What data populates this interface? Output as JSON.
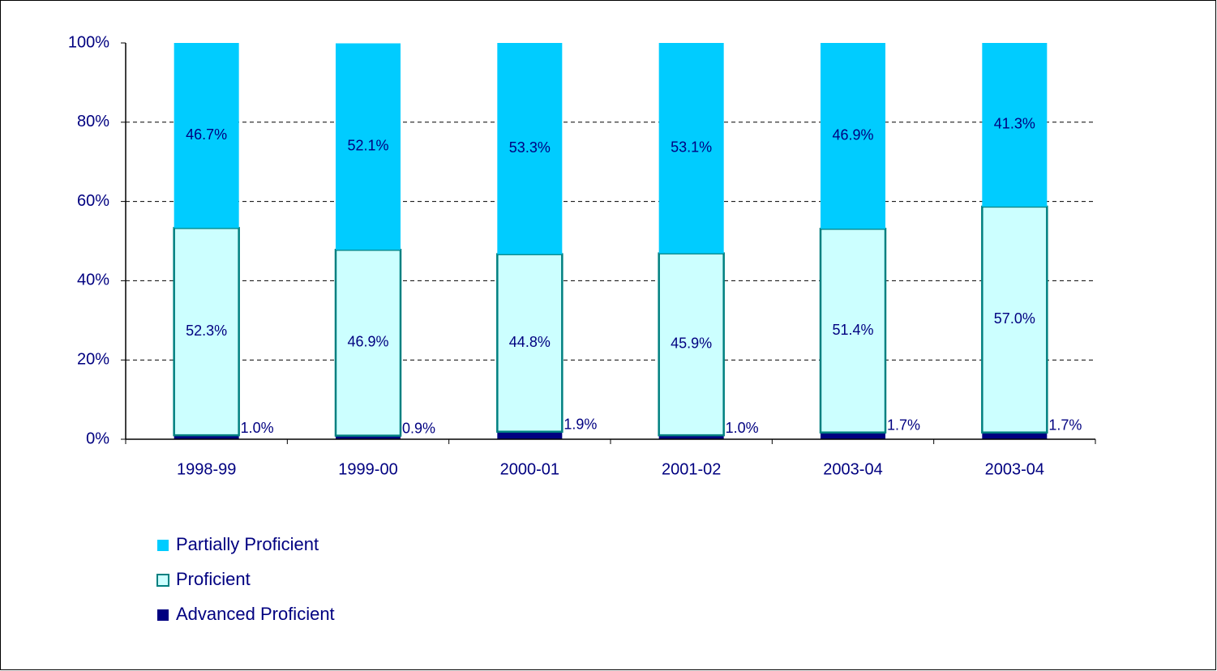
{
  "chart_data": {
    "type": "stacked_bar",
    "categories": [
      "1998-99",
      "1999-00",
      "2000-01",
      "2001-02",
      "2003-04",
      "2003-04"
    ],
    "series": [
      {
        "name": "Advanced Proficient",
        "color": "#000080",
        "values": [
          1.0,
          0.9,
          1.9,
          1.0,
          1.7,
          1.7
        ],
        "value_labels": [
          "1.0%",
          "0.9%",
          "1.9%",
          "1.0%",
          "1.7%",
          "1.7%"
        ]
      },
      {
        "name": "Proficient",
        "color": "#CCFFFF",
        "values": [
          52.3,
          46.9,
          44.8,
          45.9,
          51.4,
          57.0
        ],
        "value_labels": [
          "52.3%",
          "46.9%",
          "44.8%",
          "45.9%",
          "51.4%",
          "57.0%"
        ]
      },
      {
        "name": "Partially Proficient",
        "color": "#00CCFF",
        "values": [
          46.7,
          52.1,
          53.3,
          53.1,
          46.9,
          41.3
        ],
        "value_labels": [
          "46.7%",
          "52.1%",
          "53.3%",
          "53.1%",
          "46.9%",
          "41.3%"
        ]
      }
    ],
    "ylim": [
      0,
      100
    ],
    "yticks": [
      {
        "value": 0,
        "label": "0%"
      },
      {
        "value": 20,
        "label": "20%"
      },
      {
        "value": 40,
        "label": "40%"
      },
      {
        "value": 60,
        "label": "60%"
      },
      {
        "value": 80,
        "label": "80%"
      },
      {
        "value": 100,
        "label": "100%"
      }
    ],
    "grid": true
  }
}
